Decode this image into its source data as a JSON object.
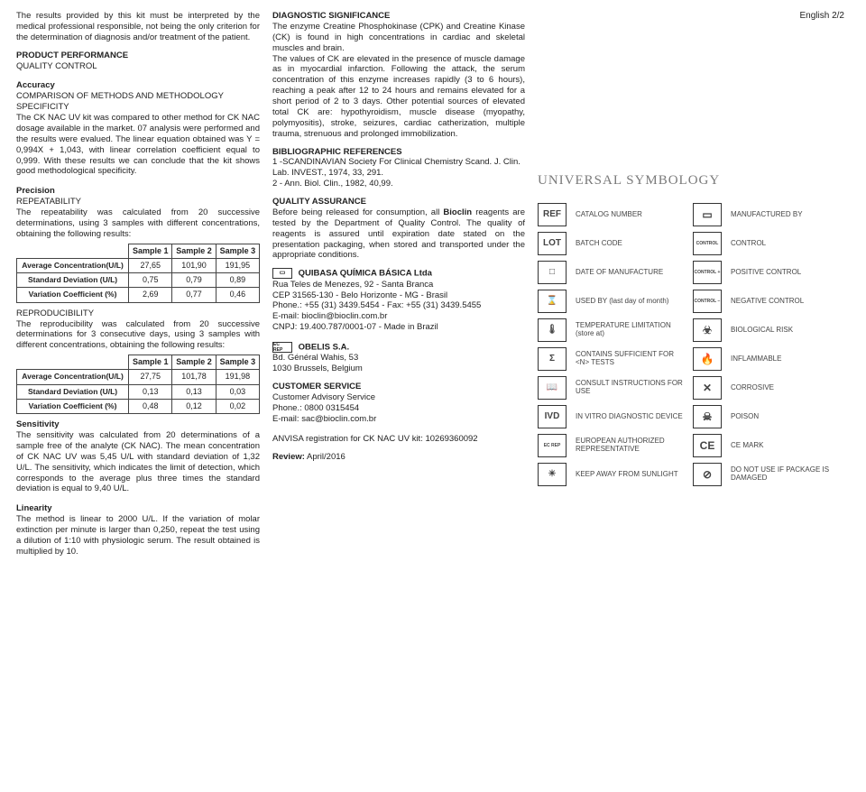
{
  "page_label": "English 2/2",
  "col1": {
    "intro": "The results provided by this kit must be interpreted by the medical professional responsible, not being the only criterion for the determination of diagnosis and/or treatment of the patient.",
    "h_perf": "PRODUCT PERFORMANCE",
    "qc": "QUALITY CONTROL",
    "acc": "Accuracy",
    "acc_sub": "COMPARISON OF METHODS AND METHODOLOGY SPECIFICITY",
    "acc_text": "The CK NAC UV kit was compared to other method for CK NAC dosage available in the market. 07 analysis were performed and the results were evalued. The linear equation obtained was Y = 0,994X + 1,043, with linear correlation coefficient equal to 0,999. With these results we can conclude that the kit shows good methodological specificity.",
    "prec": "Precision",
    "rep": "REPEATABILITY",
    "rep_text": "The repeatability was calculated from 20 successive determinations, using 3 samples with different concentrations, obtaining the following results:",
    "table1": {
      "headers": [
        "Sample 1",
        "Sample 2",
        "Sample 3"
      ],
      "rows": [
        {
          "label": "Average Concentration(U/L)",
          "v": [
            "27,65",
            "101,90",
            "191,95"
          ]
        },
        {
          "label": "Standard Deviation (U/L)",
          "v": [
            "0,75",
            "0,79",
            "0,89"
          ]
        },
        {
          "label": "Variation Coefficient (%)",
          "v": [
            "2,69",
            "0,77",
            "0,46"
          ]
        }
      ]
    },
    "repro": "REPRODUCIBILITY",
    "repro_text": "The reproducibility was calculated from 20 successive determinations for 3 consecutive days, using 3 samples with different concentrations, obtaining the following results:",
    "table2": {
      "headers": [
        "Sample 1",
        "Sample 2",
        "Sample 3"
      ],
      "rows": [
        {
          "label": "Average Concentration(U/L)",
          "v": [
            "27,75",
            "101,78",
            "191,98"
          ]
        },
        {
          "label": "Standard Deviation (U/L)",
          "v": [
            "0,13",
            "0,13",
            "0,03"
          ]
        },
        {
          "label": "Variation Coefficient (%)",
          "v": [
            "0,48",
            "0,12",
            "0,02"
          ]
        }
      ]
    },
    "sens": "Sensitivity",
    "sens_text": "The sensitivity was calculated from 20 determinations of a sample free of the analyte (CK NAC). The mean concentration of CK NAC UV was 5,45 U/L with standard deviation of 1,32 U/L. The sensitivity, which indicates the limit of detection, which corresponds to the average plus three times the standard deviation is  equal to 9,40 U/L.",
    "lin": "Linearity",
    "lin_text": "The method is linear to 2000 U/L. If the variation of molar extinction per minute is larger than 0,250, repeat the test using a dilution of 1:10 with physiologic serum.  The result obtained is multiplied by 10."
  },
  "col2": {
    "h_diag": "DIAGNOSTIC SIGNIFICANCE",
    "diag1": "The enzyme Creatine Phosphokinase (CPK) and Creatine Kinase (CK) is found in high concentrations in cardiac and skeletal muscles and brain.",
    "diag2": "The values of CK are elevated in the presence of muscle damage as in myocardial infarction.  Following the attack, the serum concentration of this enzyme increases rapidly (3 to 6 hours), reaching a peak after 12 to 24 hours and remains elevated for a short period of 2 to 3 days. Other potential sources of elevated total CK are: hypothyroidism, muscle disease (myopathy, polymyositis), stroke, seizures, cardiac catherization, multiple trauma, strenuous and prolonged immobilization.",
    "h_bib": "BIBLIOGRAPHIC REFERENCES",
    "bib1": "1 -SCANDINAVIAN Society For Clinical Chemistry Scand. J. Clin. Lab. INVEST., 1974, 33, 291.",
    "bib2": "2 - Ann. Biol. Clin., 1982, 40,99.",
    "h_qa": "QUALITY ASSURANCE",
    "qa_text": "Before being released for consumption, all Bioclin reagents are tested by the Department of Quality Control. The quality of reagents is assured until expiration date stated on the presentation packaging, when stored and transported under the appropriate conditions.",
    "company": "QUIBASA QUÍMICA BÁSICA Ltda",
    "addr1": "Rua Teles de Menezes, 92 - Santa Branca",
    "addr2": "CEP 31565-130 - Belo Horizonte - MG - Brasil",
    "phone": "Phone.: +55 (31) 3439.5454 - Fax: +55 (31) 3439.5455",
    "email": "E-mail: bioclin@bioclin.com.br",
    "cnpj": "CNPJ: 19.400.787/0001-07 - Made in Brazil",
    "rep": "OBELIS S.A.",
    "rep_addr1": "Bd. Général Wahis, 53",
    "rep_addr2": "1030 Brussels, Belgium",
    "h_cust": "CUSTOMER SERVICE",
    "cust1": "Customer Advisory Service",
    "cust2": "Phone.: 0800 0315454",
    "cust3": "E-mail: sac@bioclin.com.br",
    "anvisa": "ANVISA registration for CK NAC UV kit: 10269360092",
    "review": "Review: April/2016"
  },
  "sym": {
    "title": "UNIVERSAL SYMBOLOGY",
    "rows": [
      {
        "a_icon": "REF",
        "a_label": "CATALOG NUMBER",
        "b_icon": "▭",
        "b_label": "MANUFACTURED BY"
      },
      {
        "a_icon": "LOT",
        "a_label": "BATCH CODE",
        "b_icon": "CONTROL",
        "b_label": "CONTROL"
      },
      {
        "a_icon": "□",
        "a_label": "DATE OF MANUFACTURE",
        "b_icon": "CONTROL +",
        "b_label": "POSITIVE CONTROL"
      },
      {
        "a_icon": "⌛",
        "a_label": "USED BY\n(last day of month)",
        "b_icon": "CONTROL −",
        "b_label": "NEGATIVE CONTROL"
      },
      {
        "a_icon": "🌡",
        "a_label": "TEMPERATURE LIMITATION\n(store at)",
        "b_icon": "☣",
        "b_label": "BIOLOGICAL RISK"
      },
      {
        "a_icon": "Σ",
        "a_label": "CONTAINS SUFFICIENT FOR <N> TESTS",
        "b_icon": "🔥",
        "b_label": "INFLAMMABLE"
      },
      {
        "a_icon": "📖",
        "a_label": "CONSULT INSTRUCTIONS FOR USE",
        "b_icon": "✕",
        "b_label": "CORROSIVE"
      },
      {
        "a_icon": "IVD",
        "a_label": "IN VITRO DIAGNOSTIC DEVICE",
        "b_icon": "☠",
        "b_label": "POISON"
      },
      {
        "a_icon": "EC REP",
        "a_label": "EUROPEAN AUTHORIZED REPRESENTATIVE",
        "b_icon": "CE",
        "b_label": "CE MARK"
      },
      {
        "a_icon": "☀",
        "a_label": "KEEP AWAY FROM SUNLIGHT",
        "b_icon": "⊘",
        "b_label": "DO NOT USE IF PACKAGE IS DAMAGED"
      }
    ]
  }
}
